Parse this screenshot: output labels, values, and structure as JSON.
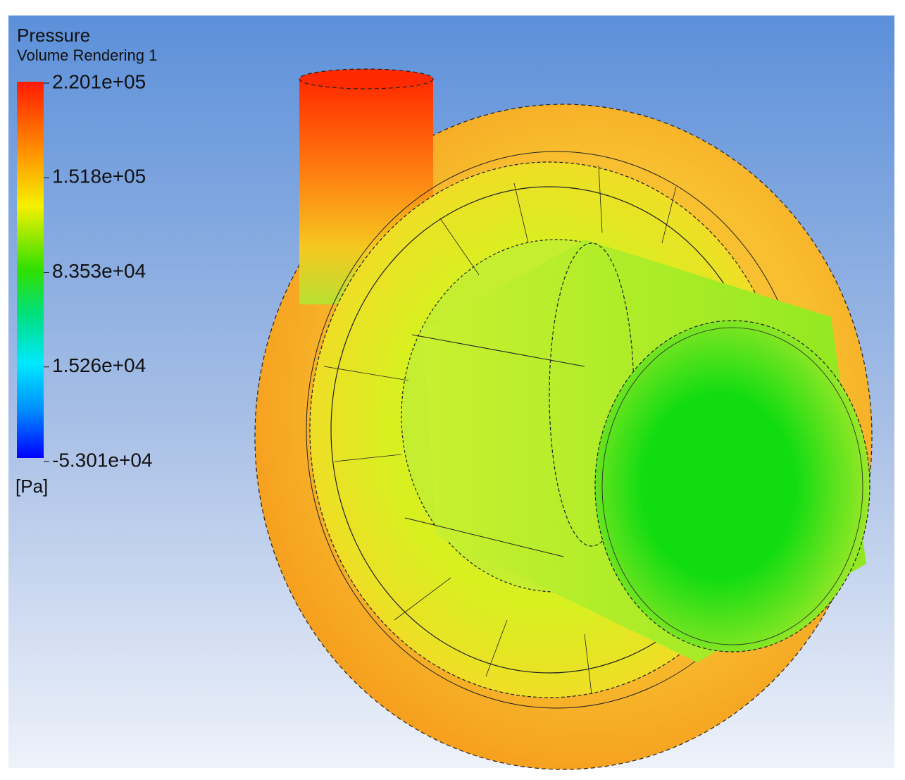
{
  "legend": {
    "title": "Pressure",
    "subtitle": "Volume Rendering 1",
    "labels": [
      "2.201e+05",
      "1.518e+05",
      "8.353e+04",
      "1.526e+04",
      "-5.301e+04"
    ],
    "unit": "[Pa]"
  }
}
